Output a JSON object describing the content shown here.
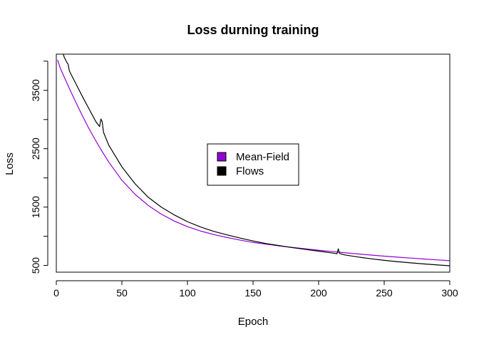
{
  "chart_data": {
    "type": "line",
    "title": "Loss durning training",
    "xlabel": "Epoch",
    "ylabel": "Loss",
    "xlim": [
      0,
      300
    ],
    "ylim": [
      385,
      4120
    ],
    "xticks": [
      0,
      50,
      100,
      150,
      200,
      250,
      300
    ],
    "yticks": [
      500,
      1500,
      2500,
      3500
    ],
    "yticks_minor": [
      1000,
      2000,
      3000,
      4000
    ],
    "grid": false,
    "legend": {
      "placement": "center"
    },
    "series": [
      {
        "name": "Mean-Field",
        "color": "#9400D3",
        "x": [
          1,
          3,
          5,
          10,
          15,
          20,
          25,
          30,
          35,
          40,
          50,
          60,
          70,
          80,
          90,
          100,
          110,
          120,
          130,
          140,
          150,
          160,
          170,
          180,
          190,
          200,
          210,
          220,
          230,
          240,
          250,
          260,
          270,
          280,
          290,
          300
        ],
        "y": [
          4020,
          3880,
          3780,
          3530,
          3290,
          3060,
          2840,
          2640,
          2450,
          2270,
          1960,
          1720,
          1530,
          1380,
          1260,
          1165,
          1090,
          1030,
          980,
          935,
          895,
          865,
          835,
          810,
          785,
          760,
          740,
          718,
          698,
          678,
          660,
          643,
          627,
          611,
          596,
          582
        ]
      },
      {
        "name": "Flows",
        "color": "#000000",
        "x": [
          5,
          6,
          8,
          9,
          10,
          15,
          20,
          25,
          30,
          33,
          34,
          35,
          36,
          40,
          50,
          60,
          70,
          80,
          90,
          100,
          110,
          120,
          130,
          140,
          150,
          160,
          170,
          180,
          190,
          200,
          210,
          214,
          215,
          216,
          220,
          230,
          240,
          250,
          260,
          270,
          280,
          290,
          300
        ],
        "y": [
          4140,
          4070,
          3980,
          3950,
          3830,
          3610,
          3390,
          3180,
          2970,
          2880,
          3010,
          2960,
          2780,
          2560,
          2190,
          1900,
          1670,
          1500,
          1365,
          1250,
          1160,
          1085,
          1025,
          970,
          920,
          875,
          840,
          805,
          775,
          745,
          715,
          700,
          785,
          705,
          680,
          645,
          615,
          588,
          565,
          545,
          527,
          510,
          495
        ]
      }
    ]
  }
}
